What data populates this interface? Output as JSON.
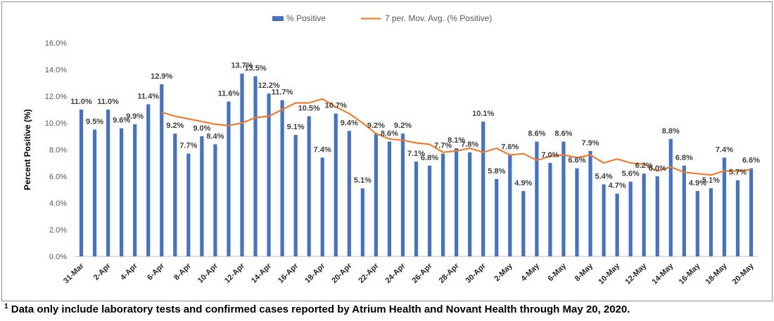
{
  "chart_data": {
    "type": "bar",
    "ylabel": "Percent Positive (%)",
    "ylim": [
      0,
      16
    ],
    "yticks": [
      "0.0%",
      "2.0%",
      "4.0%",
      "6.0%",
      "8.0%",
      "10.0%",
      "12.0%",
      "14.0%",
      "16.0%"
    ],
    "grid": false,
    "legend_position": "top",
    "categories": [
      "31-Mar",
      "1-Apr",
      "2-Apr",
      "3-Apr",
      "4-Apr",
      "5-Apr",
      "6-Apr",
      "7-Apr",
      "8-Apr",
      "9-Apr",
      "10-Apr",
      "11-Apr",
      "12-Apr",
      "13-Apr",
      "14-Apr",
      "15-Apr",
      "16-Apr",
      "17-Apr",
      "18-Apr",
      "19-Apr",
      "20-Apr",
      "21-Apr",
      "22-Apr",
      "23-Apr",
      "24-Apr",
      "25-Apr",
      "26-Apr",
      "27-Apr",
      "28-Apr",
      "29-Apr",
      "30-Apr",
      "1-May",
      "2-May",
      "3-May",
      "4-May",
      "5-May",
      "6-May",
      "7-May",
      "8-May",
      "9-May",
      "10-May",
      "11-May",
      "12-May",
      "13-May",
      "14-May",
      "15-May",
      "16-May",
      "17-May",
      "18-May",
      "19-May",
      "20-May"
    ],
    "x_tick_labels": [
      "31-Mar",
      "2-Apr",
      "4-Apr",
      "6-Apr",
      "8-Apr",
      "10-Apr",
      "12-Apr",
      "14-Apr",
      "16-Apr",
      "18-Apr",
      "20-Apr",
      "22-Apr",
      "24-Apr",
      "26-Apr",
      "28-Apr",
      "30-Apr",
      "2-May",
      "4-May",
      "6-May",
      "8-May",
      "10-May",
      "12-May",
      "14-May",
      "16-May",
      "18-May",
      "20-May"
    ],
    "series": [
      {
        "name": "% Positive",
        "kind": "bar",
        "color": "#4472c4",
        "values": [
          11.0,
          9.5,
          11.0,
          9.6,
          9.9,
          11.4,
          12.9,
          9.2,
          7.7,
          9.0,
          8.4,
          11.6,
          13.7,
          13.5,
          12.2,
          11.7,
          9.1,
          10.5,
          7.4,
          10.7,
          9.4,
          5.1,
          9.2,
          8.6,
          9.2,
          7.1,
          6.8,
          7.7,
          8.1,
          7.8,
          10.1,
          5.8,
          7.6,
          4.9,
          8.6,
          7.0,
          8.6,
          6.6,
          7.9,
          5.4,
          4.7,
          5.6,
          6.2,
          6.0,
          8.8,
          6.8,
          4.9,
          5.1,
          7.4,
          5.7,
          6.6
        ],
        "labels": [
          "11.0%",
          "9.5%",
          "11.0%",
          "9.6%",
          "9.9%",
          "11.4%",
          "12.9%",
          "9.2%",
          "7.7%",
          "9.0%",
          "8.4%",
          "11.6%",
          "13.7%",
          "13.5%",
          "12.2%",
          "11.7%",
          "9.1%",
          "10.5%",
          "7.4%",
          "10.7%",
          "9.4%",
          "5.1%",
          "9.2%",
          "8.6%",
          "9.2%",
          "7.1%",
          "6.8%",
          "7.7%",
          "8.1%",
          "7.8%",
          "10.1%",
          "5.8%",
          "7.6%",
          "4.9%",
          "8.6%",
          "7.0%",
          "8.6%",
          "6.6%",
          "7.9%",
          "5.4%",
          "4.7%",
          "5.6%",
          "6.2%",
          "6.0%",
          "8.8%",
          "6.8%",
          "4.9%",
          "5.1%",
          "7.4%",
          "5.7%",
          "6.6%"
        ]
      },
      {
        "name": "7 per. Mov. Avg. (% Positive)",
        "kind": "line",
        "color": "#ed7d31",
        "values": [
          null,
          null,
          null,
          null,
          null,
          null,
          10.8,
          10.5,
          10.3,
          10.1,
          9.9,
          9.8,
          10.0,
          10.4,
          10.5,
          11.0,
          11.5,
          11.5,
          11.8,
          11.2,
          10.7,
          10.0,
          9.2,
          8.8,
          8.7,
          8.5,
          8.4,
          7.8,
          7.9,
          8.1,
          7.8,
          8.1,
          7.6,
          7.7,
          7.2,
          7.5,
          7.6,
          7.4,
          7.6,
          7.0,
          7.3,
          7.0,
          6.9,
          6.4,
          6.7,
          6.3,
          6.2,
          6.1,
          6.4,
          6.4,
          6.5
        ]
      }
    ]
  },
  "footnote": {
    "marker": "1",
    "text": "Data only include laboratory tests and confirmed cases reported by Atrium Health and Novant Health through May 20, 2020."
  }
}
